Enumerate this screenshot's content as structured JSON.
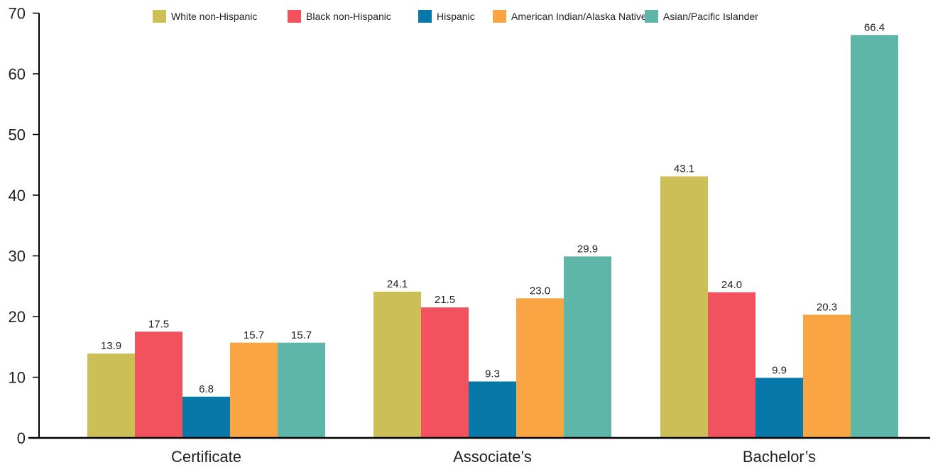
{
  "chart_data": {
    "type": "bar",
    "categories": [
      "Certificate",
      "Associate’s",
      "Bachelor’s"
    ],
    "series": [
      {
        "name": "White non-Hispanic",
        "color": "#CDBF58",
        "values": [
          13.9,
          24.1,
          43.1
        ]
      },
      {
        "name": "Black non-Hispanic",
        "color": "#F2525E",
        "values": [
          17.5,
          21.5,
          24.0
        ]
      },
      {
        "name": "Hispanic",
        "color": "#0878A8",
        "values": [
          6.8,
          9.3,
          9.9
        ]
      },
      {
        "name": "American Indian/Alaska Native",
        "color": "#F9A544",
        "values": [
          15.7,
          23.0,
          20.3
        ]
      },
      {
        "name": "Asian/Pacific Islander",
        "color": "#5EB6A8",
        "values": [
          15.7,
          29.9,
          66.4
        ]
      }
    ],
    "value_labels": [
      [
        "13.9",
        "24.1",
        "43.1"
      ],
      [
        "17.5",
        "21.5",
        "24.0"
      ],
      [
        "6.8",
        "9.3",
        "9.9"
      ],
      [
        "15.7",
        "23.0",
        "20.3"
      ],
      [
        "15.7",
        "29.9",
        "66.4"
      ]
    ],
    "yticks": [
      0,
      10,
      20,
      30,
      40,
      50,
      60,
      70
    ],
    "ytick_labels": [
      "0",
      "10",
      "20",
      "30",
      "40",
      "50",
      "60",
      "70"
    ],
    "ylim": [
      0,
      70
    ],
    "title": "",
    "xlabel": "",
    "ylabel": "",
    "grid": false,
    "legend_position": "top"
  }
}
